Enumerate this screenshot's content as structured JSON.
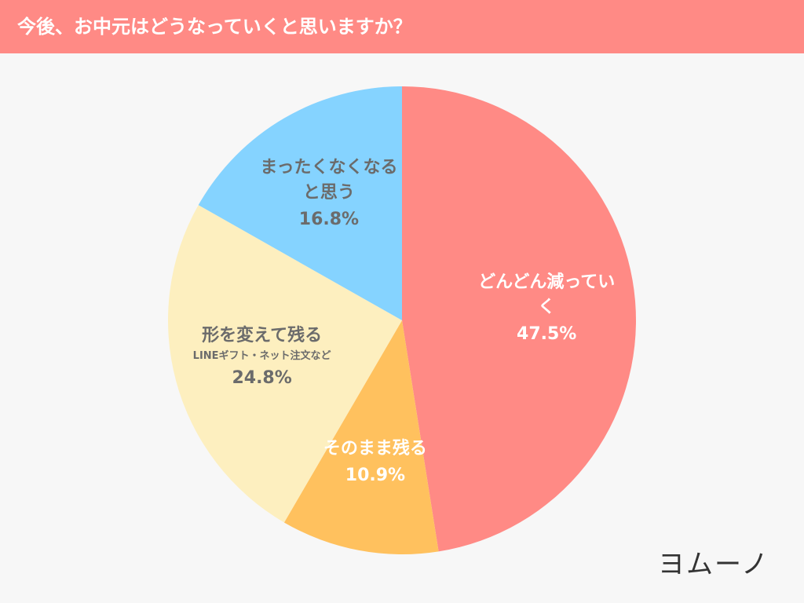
{
  "chart_data": {
    "type": "pie",
    "title": "今後、お中元はどうなっていくと思いますか？",
    "categories": [
      "どんどん減っていく",
      "そのまま残る",
      "形を変えて残る",
      "まったくなくなると思う"
    ],
    "notes": [
      null,
      null,
      "LINEギフト・ネット注文など",
      null
    ],
    "values": [
      47.5,
      10.9,
      24.8,
      16.8
    ],
    "value_labels": [
      "47.5%",
      "10.9%",
      "24.8%",
      "16.8%"
    ],
    "colors": [
      "#ff8a85",
      "#ffc15e",
      "#fdefbf",
      "#85d3ff"
    ],
    "label_colors": [
      "#ffffff",
      "#ffffff",
      "#6b6b6b",
      "#6b6b6b"
    ],
    "logo": "ヨムーノ"
  }
}
